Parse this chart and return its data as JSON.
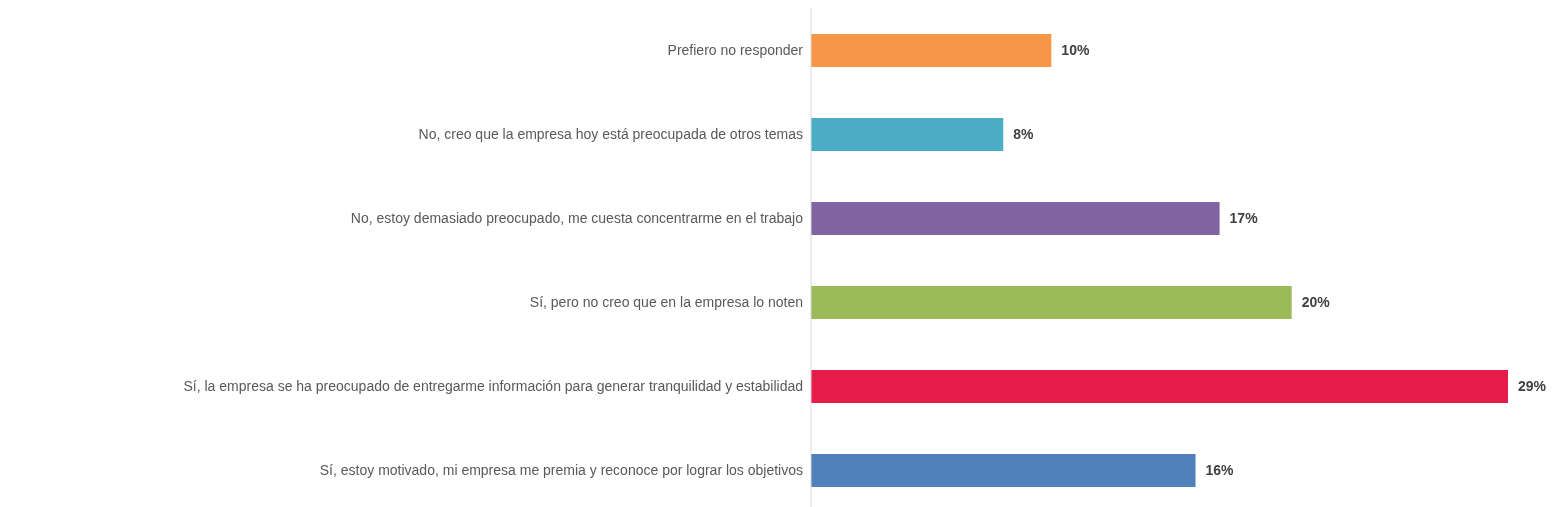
{
  "chart_data": {
    "type": "bar",
    "orientation": "horizontal",
    "categories": [
      "Prefiero no responder",
      "No, creo que la empresa hoy está preocupada de otros temas",
      "No, estoy demasiado preocupado, me cuesta concentrarme en el trabajo",
      "Sí, pero no creo que en la empresa lo noten",
      "Sí, la empresa se ha preocupado de entregarme información para generar tranquilidad y estabilidad",
      "Sí, estoy motivado, mi empresa me premia y reconoce por lograr los objetivos"
    ],
    "values": [
      10,
      8,
      17,
      20,
      29,
      16
    ],
    "colors": [
      "#f79646",
      "#4bacc6",
      "#8064a2",
      "#9bbb59",
      "#e71c4a",
      "#4f81bd"
    ],
    "value_labels": [
      "10%",
      "8%",
      "17%",
      "20%",
      "29%",
      "16%"
    ],
    "grid": false,
    "legend": false
  }
}
